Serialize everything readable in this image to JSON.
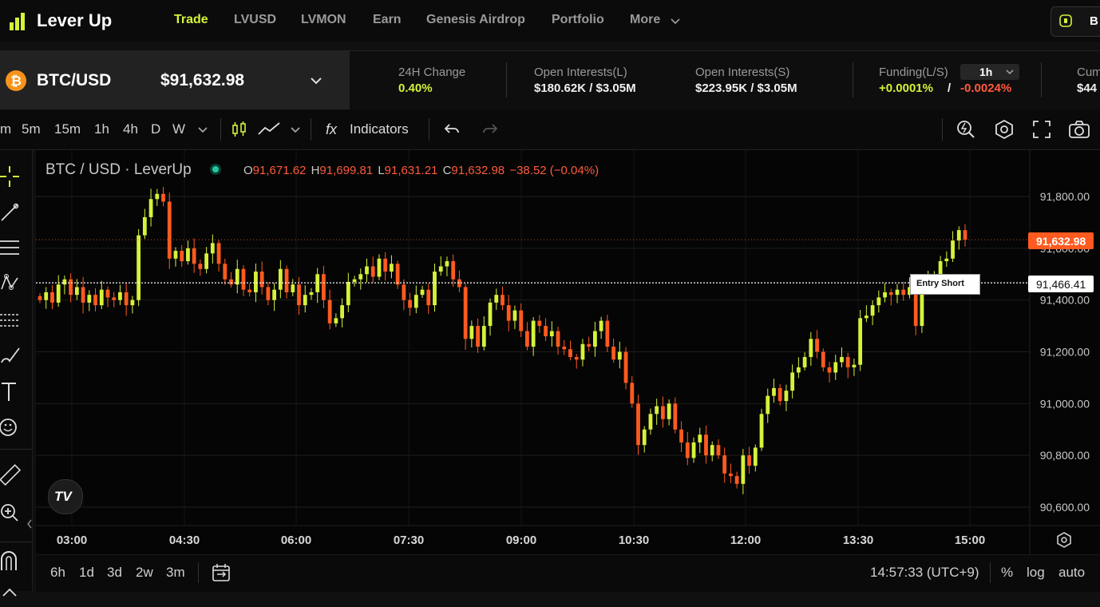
{
  "brand": {
    "name": "Lever Up"
  },
  "nav": {
    "items": [
      "Trade",
      "LVUSD",
      "LVMON",
      "Earn",
      "Genesis Airdrop",
      "Portfolio",
      "More"
    ],
    "active": "Trade",
    "wallet_label": "B"
  },
  "market": {
    "pair": "BTC/USD",
    "price": "$91,632.98",
    "change_label": "24H Change",
    "change_value": "0.40%",
    "oi_long_label": "Open Interests(L)",
    "oi_long_value": "$180.62K / $3.05M",
    "oi_short_label": "Open Interests(S)",
    "oi_short_value": "$223.95K / $3.05M",
    "funding_label": "Funding(L/S)",
    "funding_interval": "1h",
    "funding_long": "+0.0001%",
    "funding_sep": "/",
    "funding_short": "-0.0024%",
    "cum_label": "Cum",
    "cum_value": "$44"
  },
  "toolbar": {
    "intervals": [
      "m",
      "5m",
      "15m",
      "1h",
      "4h",
      "D",
      "W"
    ],
    "active_interval": "5m",
    "indicators_label": "Indicators",
    "fx_label": "fx"
  },
  "chart": {
    "symbol_title": "BTC / USD · LeverUp",
    "ohlc": {
      "o_label": "O",
      "o": "91,671.62",
      "h_label": "H",
      "h": "91,699.81",
      "l_label": "L",
      "l": "91,631.21",
      "c_label": "C",
      "c": "91,632.98",
      "change": "−38.52 (−0.04%)"
    },
    "price_label": "91,632.98",
    "entry_label": "91,466.41",
    "entry_tag": "Entry Short",
    "watermark": "TV",
    "colors": {
      "up": "#d6f23a",
      "down": "#ff5a1f",
      "price_line": "#ff5a1f",
      "entry_line": "#ffffff"
    }
  },
  "chart_data": {
    "type": "candlestick",
    "title": "BTC / USD · LeverUp",
    "interval": "5m",
    "y_ticks": [
      91800,
      91600,
      91400,
      91200,
      91000,
      90800,
      90600
    ],
    "x_ticks": [
      "03:00",
      "04:30",
      "06:00",
      "07:30",
      "09:00",
      "10:30",
      "12:00",
      "13:30",
      "15:00"
    ],
    "last_price": 91632.98,
    "entry_short_price": 91466.41,
    "grid": true,
    "close_series": [
      91400,
      91430,
      91390,
      91460,
      91480,
      91420,
      91450,
      91390,
      91420,
      91380,
      91440,
      91410,
      91400,
      91430,
      91380,
      91400,
      91650,
      91720,
      91790,
      91810,
      91780,
      91560,
      91590,
      91550,
      91600,
      91540,
      91520,
      91580,
      91620,
      91540,
      91480,
      91460,
      91520,
      91440,
      91430,
      91510,
      91450,
      91400,
      91440,
      91520,
      91430,
      91460,
      91380,
      91420,
      91430,
      91500,
      91400,
      91310,
      91330,
      91380,
      91470,
      91480,
      91500,
      91530,
      91490,
      91560,
      91510,
      91540,
      91460,
      91400,
      91370,
      91420,
      91440,
      91380,
      91510,
      91530,
      91550,
      91480,
      91450,
      91250,
      91300,
      91220,
      91300,
      91390,
      91420,
      91380,
      91320,
      91360,
      91280,
      91220,
      91320,
      91300,
      91260,
      91280,
      91220,
      91210,
      91180,
      91170,
      91230,
      91220,
      91280,
      91320,
      91220,
      91170,
      91200,
      91080,
      91000,
      90840,
      90900,
      90960,
      90990,
      90940,
      91000,
      90900,
      90850,
      90790,
      90850,
      90880,
      90800,
      90840,
      90800,
      90730,
      90720,
      90690,
      90800,
      90760,
      90830,
      90960,
      91030,
      91060,
      91010,
      91050,
      91120,
      91140,
      91180,
      91250,
      91200,
      91140,
      91120,
      91160,
      91180,
      91140,
      91150,
      91330,
      91340,
      91380,
      91410,
      91430,
      91420,
      91440,
      91420,
      91450,
      91300,
      91470,
      91480,
      91500,
      91550,
      91560,
      91630,
      91670,
      91632.98
    ]
  }
}
